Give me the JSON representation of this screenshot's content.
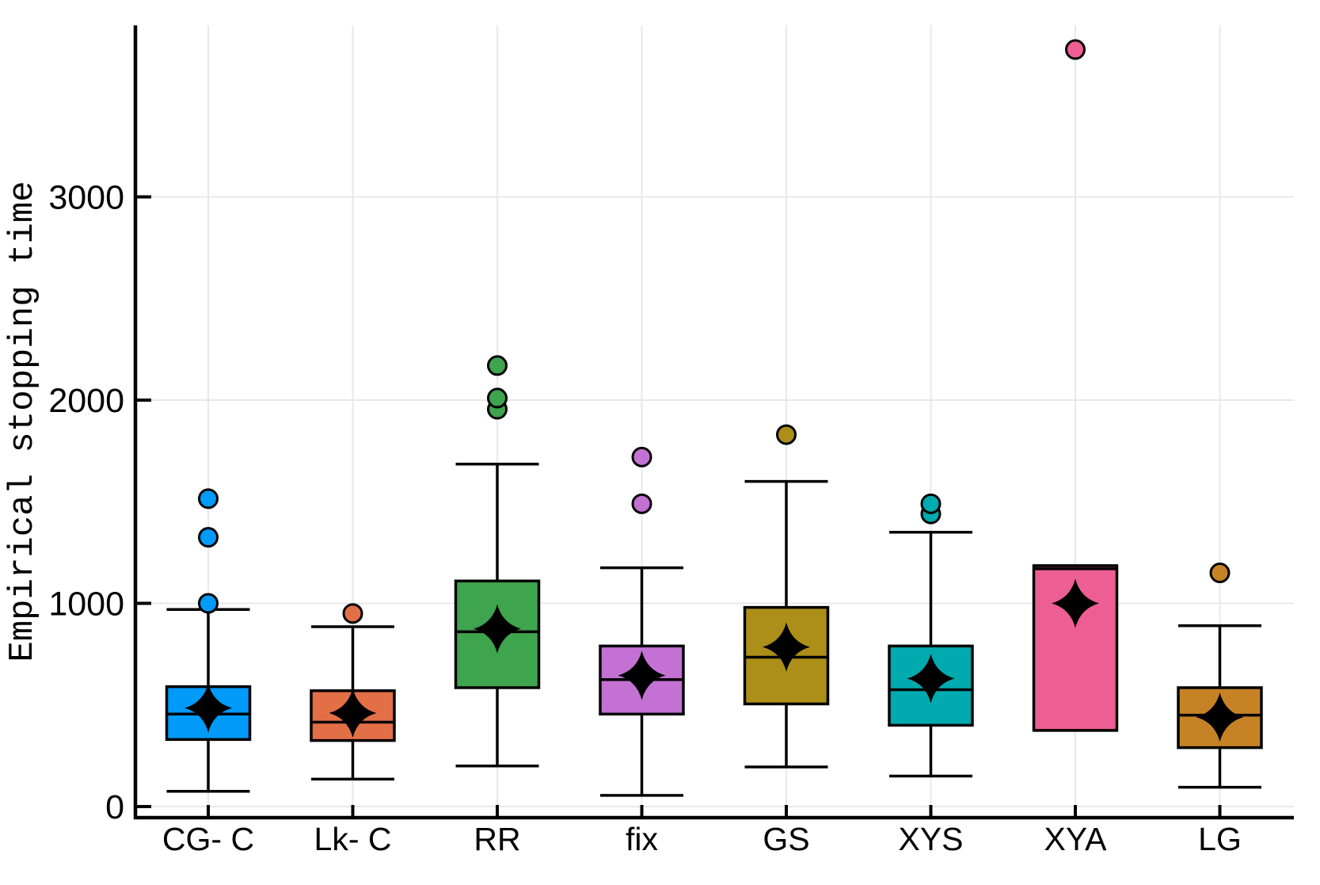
{
  "figure": {
    "background": "#ffffff",
    "axis_color": "#000000",
    "grid_color": "#e8e8e8"
  },
  "chart_data": {
    "type": "boxplot",
    "title": "",
    "xlabel": "",
    "ylabel": "Empirical stopping time",
    "categories": [
      "CG- C",
      "Lk- C",
      "RR",
      "fix",
      "GS",
      "XYS",
      "XYA",
      "LG"
    ],
    "yticks": [
      0,
      1000,
      2000,
      3000
    ],
    "ytick_labels": [
      "0",
      "1000",
      "2000",
      "3000"
    ],
    "ylim": [
      -55,
      3845
    ],
    "grid": "both",
    "legend_position": "none",
    "mean_marker": "four-pointed-star",
    "series": [
      {
        "name": "CG- C",
        "color": "#009AF9",
        "whisker_low": 75,
        "q1": 330,
        "median": 455,
        "q3": 590,
        "whisker_high": 970,
        "mean": 485,
        "outliers": [
          1000,
          1325,
          1515
        ]
      },
      {
        "name": "Lk- C",
        "color": "#E36F47",
        "whisker_low": 135,
        "q1": 325,
        "median": 415,
        "q3": 570,
        "whisker_high": 885,
        "mean": 460,
        "outliers": [
          950
        ]
      },
      {
        "name": "RR",
        "color": "#3EA44E",
        "whisker_low": 200,
        "q1": 585,
        "median": 860,
        "q3": 1110,
        "whisker_high": 1685,
        "mean": 875,
        "outliers": [
          1955,
          2010,
          2170
        ]
      },
      {
        "name": "fix",
        "color": "#C371D2",
        "whisker_low": 55,
        "q1": 455,
        "median": 625,
        "q3": 790,
        "whisker_high": 1175,
        "mean": 645,
        "outliers": [
          1490,
          1720
        ]
      },
      {
        "name": "GS",
        "color": "#AC8E18",
        "whisker_low": 195,
        "q1": 505,
        "median": 735,
        "q3": 980,
        "whisker_high": 1600,
        "mean": 785,
        "outliers": [
          1830
        ]
      },
      {
        "name": "XYS",
        "color": "#00AAAE",
        "whisker_low": 150,
        "q1": 400,
        "median": 575,
        "q3": 790,
        "whisker_high": 1350,
        "mean": 630,
        "outliers": [
          1440,
          1490
        ]
      },
      {
        "name": "XYA",
        "color": "#ED5E93",
        "whisker_low": 375,
        "q1": 375,
        "median": 1170,
        "q3": 1185,
        "whisker_high": 1185,
        "mean": 1000,
        "outliers": [
          3725
        ]
      },
      {
        "name": "LG",
        "color": "#C68225",
        "whisker_low": 95,
        "q1": 290,
        "median": 450,
        "q3": 585,
        "whisker_high": 890,
        "mean": 440,
        "outliers": [
          1150
        ]
      }
    ]
  }
}
